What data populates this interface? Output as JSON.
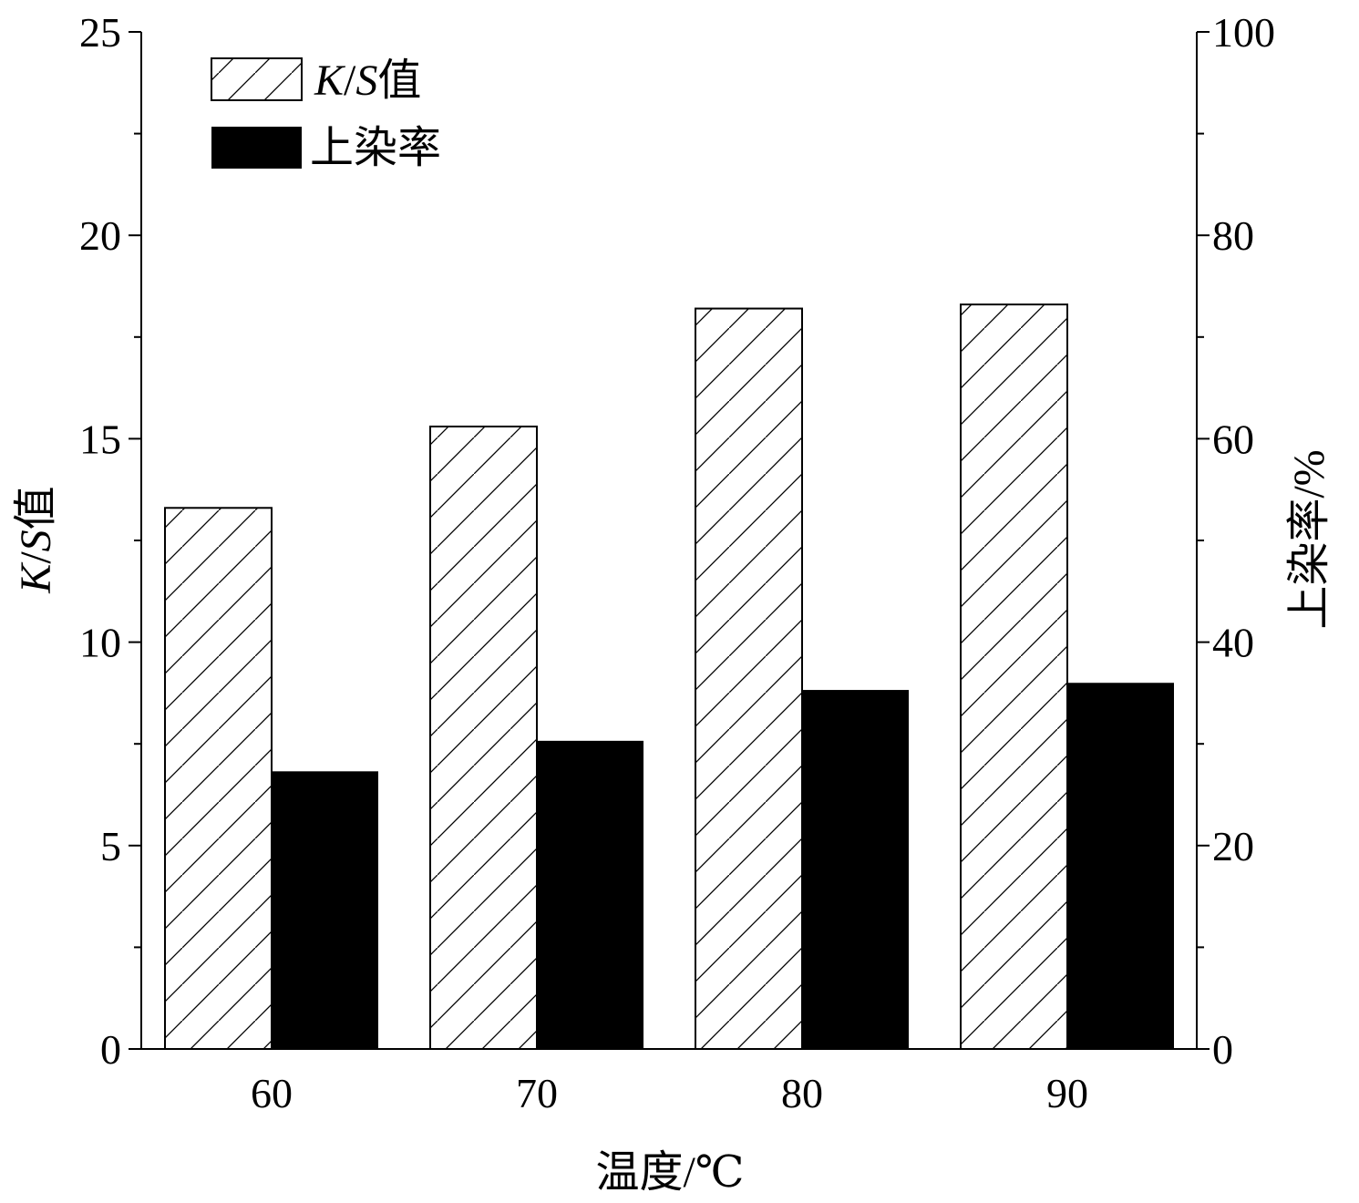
{
  "chart_data": {
    "type": "bar",
    "categories": [
      "60",
      "70",
      "80",
      "90"
    ],
    "xlabel": "温度/℃",
    "ylabel_left": {
      "italic_k": "K",
      "slash": "/",
      "italic_s": "S",
      "suffix": "值"
    },
    "ylabel_right": "上染率/%",
    "ylim_left": [
      0,
      25
    ],
    "yticks_left": [
      "0",
      "5",
      "10",
      "15",
      "20",
      "25"
    ],
    "ylim_right": [
      0,
      100
    ],
    "yticks_right": [
      "0",
      "20",
      "40",
      "60",
      "80",
      "100"
    ],
    "legend_position": "top-left",
    "series": [
      {
        "name": "K/S值",
        "legend": {
          "italic_k": "K",
          "slash": "/",
          "italic_s": "S",
          "suffix": "值"
        },
        "axis": "left",
        "fill": "hatched",
        "values": [
          13.3,
          15.3,
          18.2,
          18.3
        ]
      },
      {
        "name": "上染率",
        "legend": "上染率",
        "axis": "right",
        "fill": "solid",
        "color": "#000000",
        "values": [
          27.3,
          30.3,
          35.3,
          36.0
        ]
      }
    ]
  }
}
